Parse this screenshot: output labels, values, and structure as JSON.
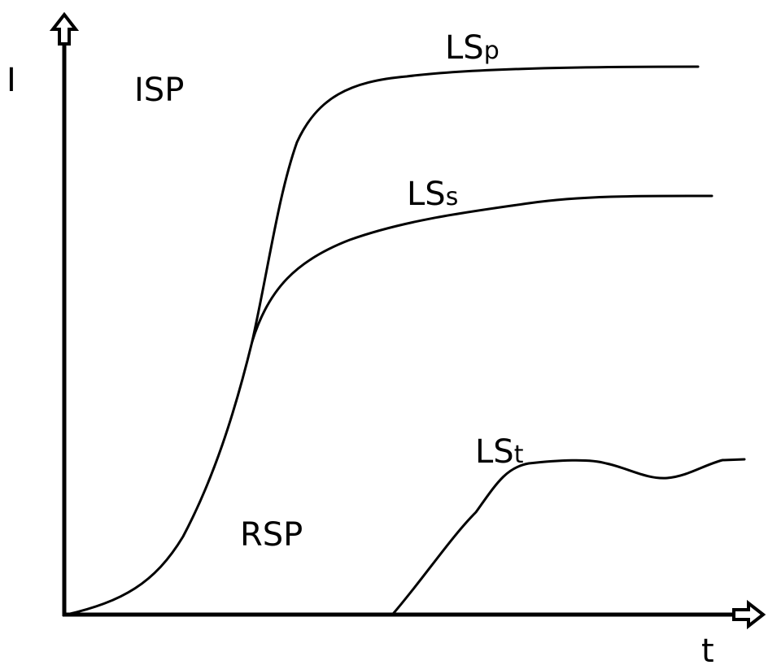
{
  "axes": {
    "y_label": "I",
    "x_label": "t"
  },
  "regions": {
    "upper": "ISP",
    "lower": "RSP"
  },
  "curves": [
    {
      "main": "LS",
      "sub": "p"
    },
    {
      "main": "LS",
      "sub": "s"
    },
    {
      "main": "LS",
      "sub": "t"
    }
  ],
  "style": {
    "stroke_color": "#000000",
    "background": "#ffffff"
  }
}
